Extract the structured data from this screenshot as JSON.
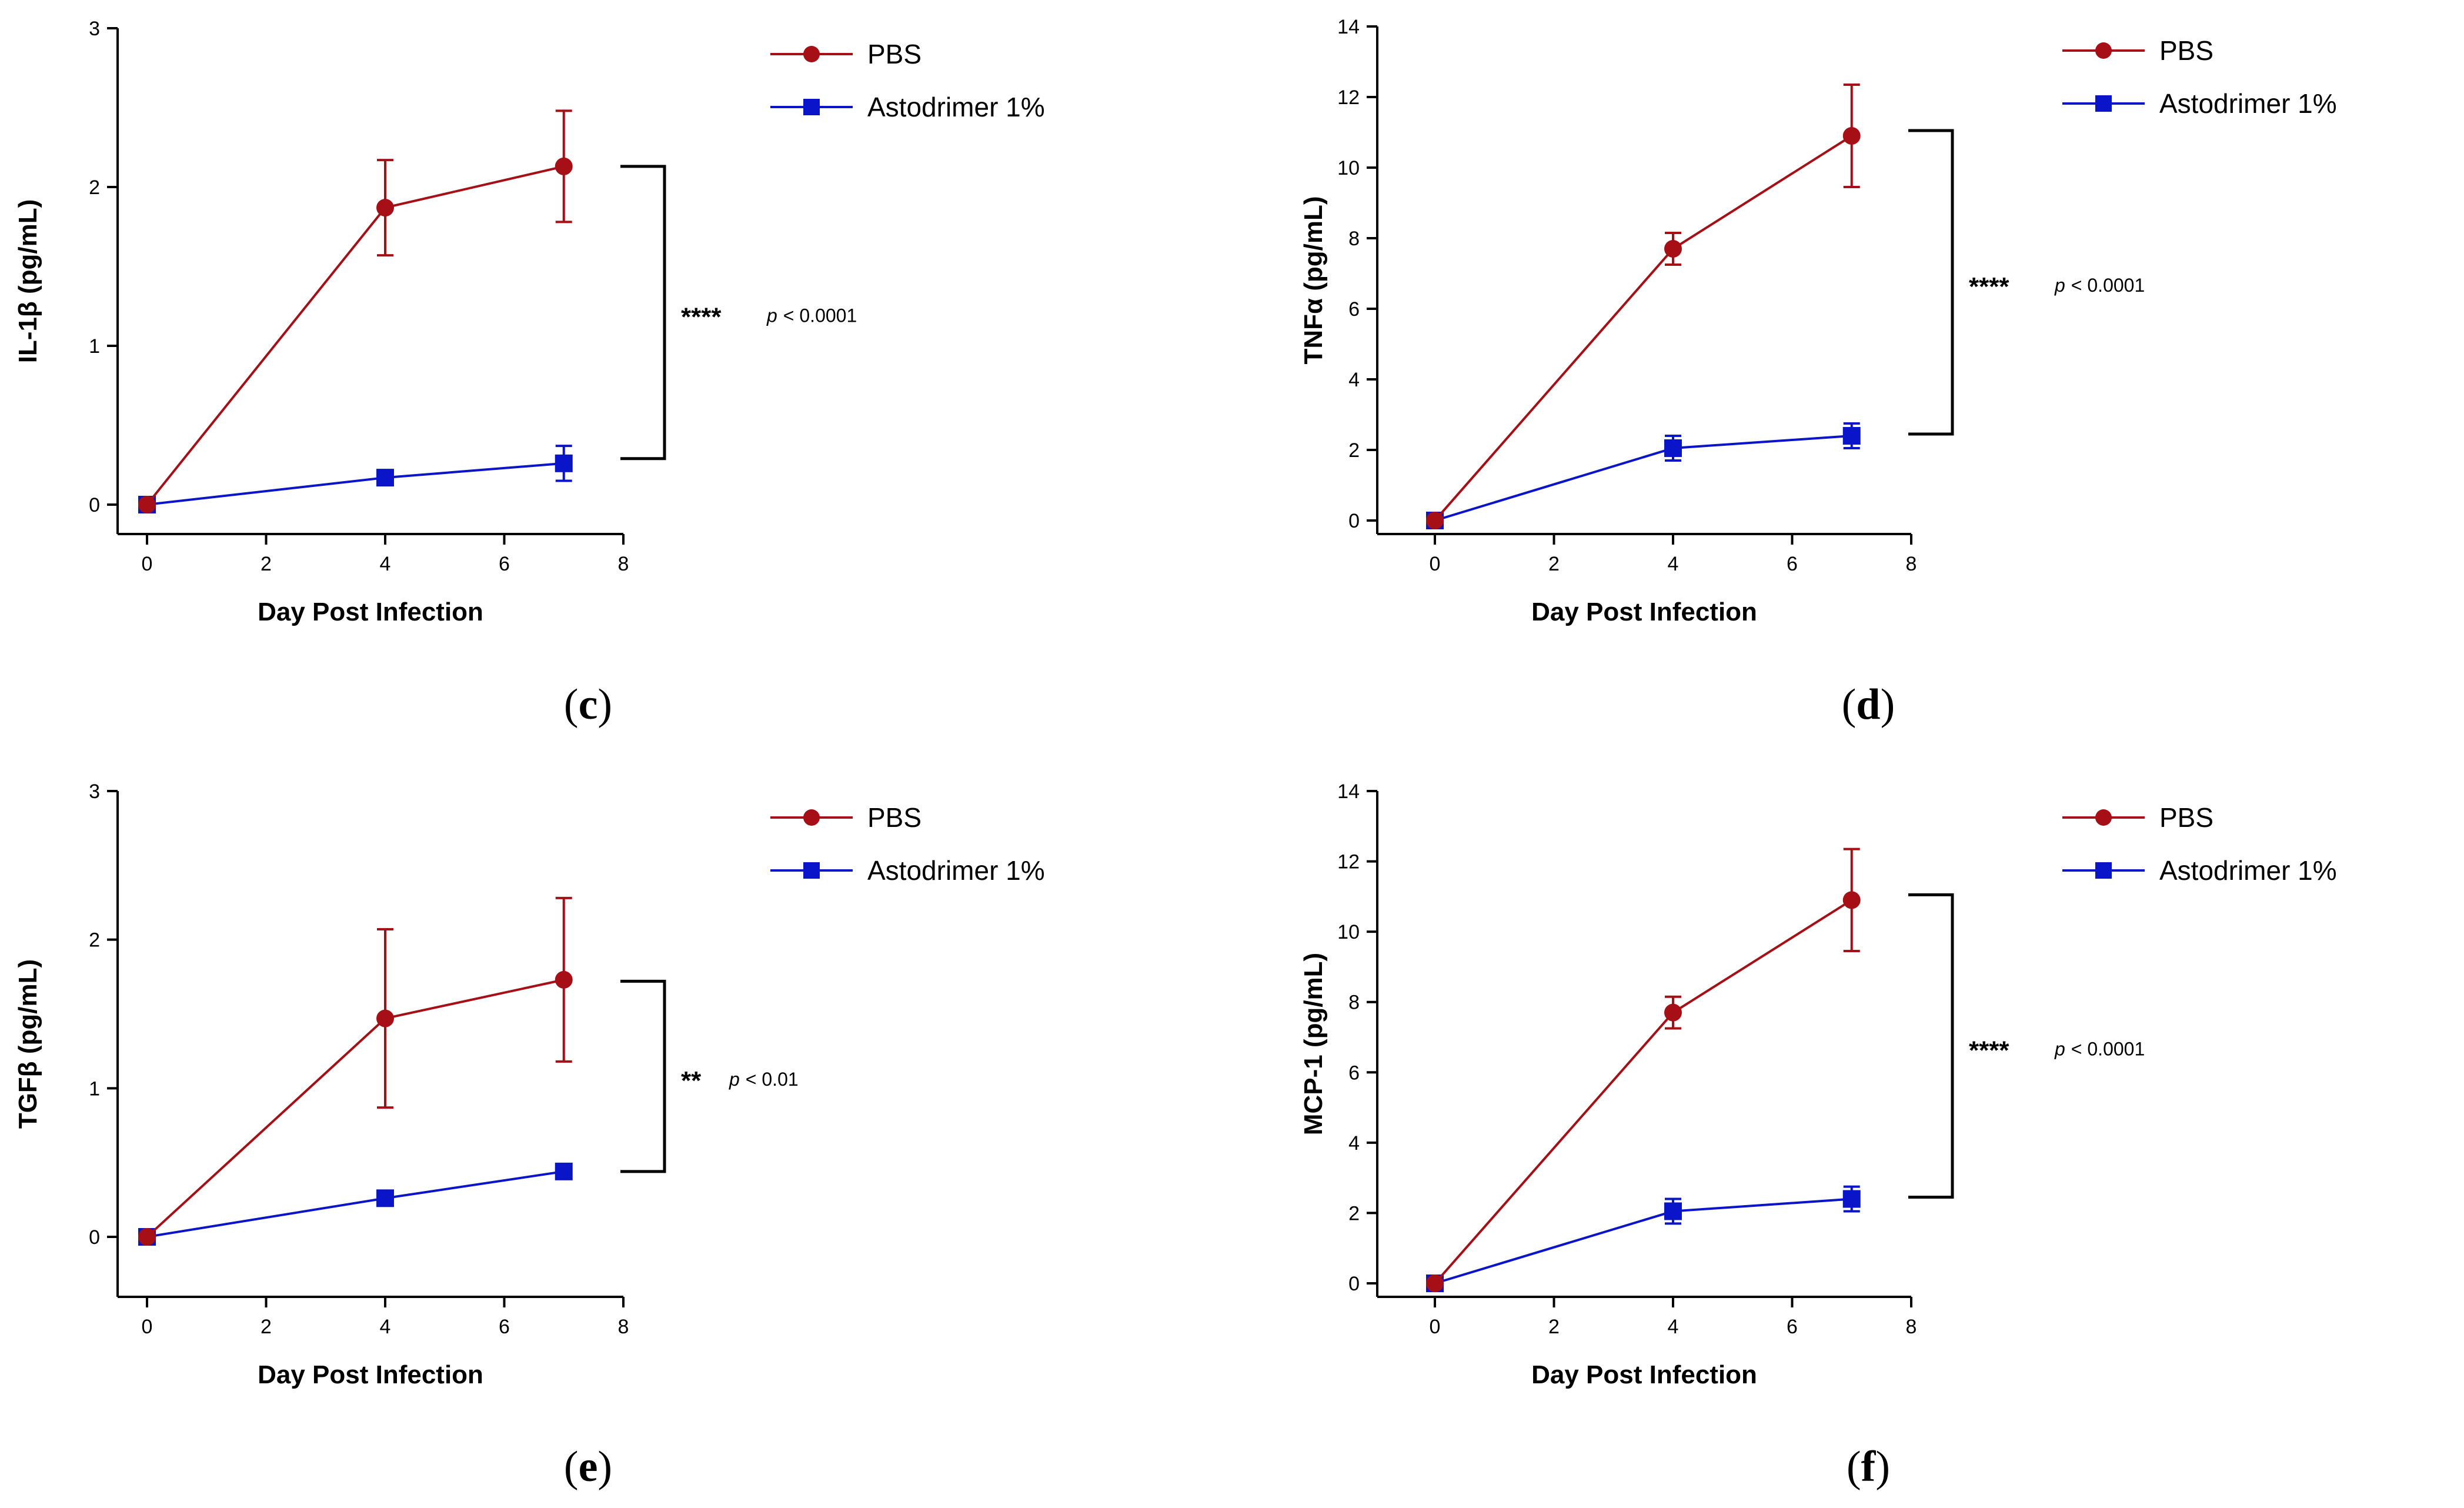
{
  "colors": {
    "PBS": "#a50f15",
    "Astodrimer 1%": "#0a14c8",
    "axis": "#000000"
  },
  "chart_data": [
    {
      "type": "line",
      "panel": "c",
      "xlabel": "Day Post Infection",
      "ylabel": "IL-1β (pg/mL)",
      "xlim": [
        0,
        8
      ],
      "ylim": [
        0,
        3
      ],
      "xticks": [
        0,
        2,
        4,
        6,
        8
      ],
      "yticks": [
        0,
        1,
        2,
        3
      ],
      "x": [
        0,
        4,
        7
      ],
      "series": [
        {
          "name": "PBS",
          "marker": "circle",
          "values": [
            0,
            1.87,
            2.13
          ],
          "err": [
            0,
            0.3,
            0.35
          ]
        },
        {
          "name": "Astodrimer 1%",
          "marker": "square",
          "values": [
            0,
            0.17,
            0.26
          ],
          "err": [
            0,
            0.04,
            0.11
          ]
        }
      ],
      "annotation": {
        "stars": "****",
        "p_symbol": "p",
        "p_text": "< 0.0001",
        "from": 2.13,
        "to": 0.29
      },
      "legend_position": "top-right"
    },
    {
      "type": "line",
      "panel": "d",
      "xlabel": "Day Post Infection",
      "ylabel": "TNFα (pg/mL)",
      "xlim": [
        0,
        8
      ],
      "ylim": [
        0,
        14
      ],
      "xticks": [
        0,
        2,
        4,
        6,
        8
      ],
      "yticks": [
        0,
        2,
        4,
        6,
        8,
        10,
        12,
        14
      ],
      "x": [
        0,
        4,
        7
      ],
      "series": [
        {
          "name": "PBS",
          "marker": "circle",
          "values": [
            0,
            7.7,
            10.9
          ],
          "err": [
            0,
            0.45,
            1.45
          ]
        },
        {
          "name": "Astodrimer 1%",
          "marker": "square",
          "values": [
            0,
            2.05,
            2.4
          ],
          "err": [
            0,
            0.35,
            0.35
          ]
        }
      ],
      "annotation": {
        "stars": "****",
        "p_symbol": "p",
        "p_text": "< 0.0001",
        "from": 11.05,
        "to": 2.45
      },
      "legend_position": "top-right"
    },
    {
      "type": "line",
      "panel": "e",
      "xlabel": "Day Post Infection",
      "ylabel": "TGFβ (pg/mL)",
      "xlim": [
        0,
        8
      ],
      "ylim": [
        0,
        3
      ],
      "xticks": [
        0,
        2,
        4,
        6,
        8
      ],
      "yticks": [
        0,
        1,
        2,
        3
      ],
      "x": [
        0,
        4,
        7
      ],
      "series": [
        {
          "name": "PBS",
          "marker": "circle",
          "values": [
            0,
            1.47,
            1.73
          ],
          "err": [
            0,
            0.6,
            0.55
          ]
        },
        {
          "name": "Astodrimer 1%",
          "marker": "square",
          "values": [
            0,
            0.26,
            0.44
          ],
          "err": [
            0,
            0.03,
            0.04
          ]
        }
      ],
      "annotation": {
        "stars": "**",
        "p_symbol": "p",
        "p_text": "< 0.01",
        "from": 1.72,
        "to": 0.44
      },
      "legend_position": "top-right"
    },
    {
      "type": "line",
      "panel": "f",
      "xlabel": "Day Post Infection",
      "ylabel": "MCP-1 (pg/mL)",
      "xlim": [
        0,
        8
      ],
      "ylim": [
        0,
        14
      ],
      "xticks": [
        0,
        2,
        4,
        6,
        8
      ],
      "yticks": [
        0,
        2,
        4,
        6,
        8,
        10,
        12,
        14
      ],
      "x": [
        0,
        4,
        7
      ],
      "series": [
        {
          "name": "PBS",
          "marker": "circle",
          "values": [
            0,
            7.7,
            10.9
          ],
          "err": [
            0,
            0.45,
            1.45
          ]
        },
        {
          "name": "Astodrimer 1%",
          "marker": "square",
          "values": [
            0,
            2.05,
            2.4
          ],
          "err": [
            0,
            0.35,
            0.35
          ]
        }
      ],
      "annotation": {
        "stars": "****",
        "p_symbol": "p",
        "p_text": "< 0.0001",
        "from": 11.05,
        "to": 2.45
      },
      "legend_position": "top-right"
    }
  ]
}
